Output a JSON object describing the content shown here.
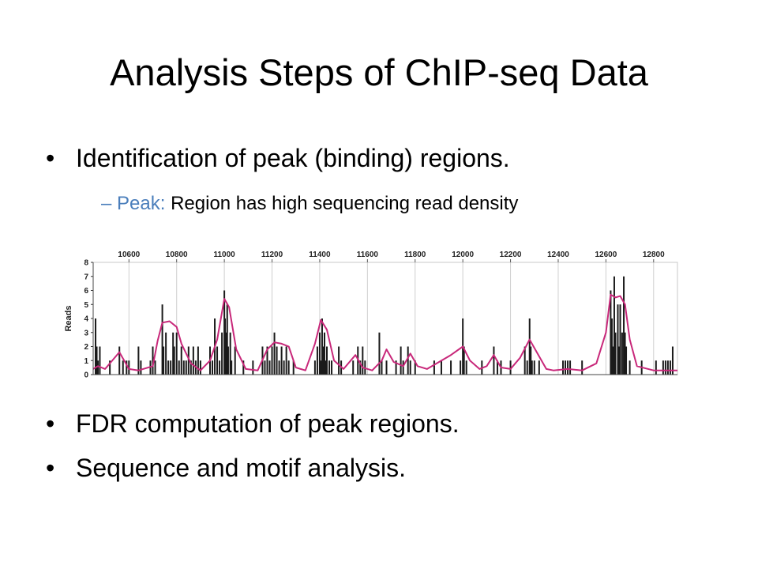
{
  "slide": {
    "title": "Analysis Steps of ChIP-seq Data",
    "bullet_1": "Identification of peak (binding) regions.",
    "sub_1_dash": "–",
    "sub_1_term": "Peak:",
    "sub_1_text": "Region has high sequencing read density",
    "bullet_2": "FDR computation of peak regions.",
    "bullet_3": "Sequence and motif analysis.",
    "bullet_symbol": "•",
    "accent_color": "#4a7ebb"
  },
  "chart_data": {
    "type": "bar",
    "ylabel": "Reads",
    "ylim": [
      0,
      8
    ],
    "yticks": [
      0,
      1,
      2,
      3,
      4,
      5,
      6,
      7,
      8
    ],
    "xlim": [
      10450,
      12900
    ],
    "xticks": [
      10600,
      10800,
      11000,
      11200,
      11400,
      11600,
      11800,
      12000,
      12200,
      12400,
      12600,
      12800
    ],
    "grid": true,
    "bar_color": "#1a1a1a",
    "curve_color": "#c8287a",
    "bars": [
      [
        10460,
        4
      ],
      [
        10465,
        2
      ],
      [
        10470,
        1
      ],
      [
        10478,
        2
      ],
      [
        10520,
        1
      ],
      [
        10560,
        2
      ],
      [
        10575,
        1
      ],
      [
        10590,
        1
      ],
      [
        10600,
        1
      ],
      [
        10640,
        2
      ],
      [
        10650,
        1
      ],
      [
        10690,
        1
      ],
      [
        10700,
        2
      ],
      [
        10710,
        1
      ],
      [
        10740,
        5
      ],
      [
        10745,
        2
      ],
      [
        10755,
        3
      ],
      [
        10765,
        1
      ],
      [
        10775,
        1
      ],
      [
        10785,
        3
      ],
      [
        10790,
        2
      ],
      [
        10800,
        3
      ],
      [
        10810,
        1
      ],
      [
        10820,
        2
      ],
      [
        10830,
        1
      ],
      [
        10840,
        1
      ],
      [
        10850,
        2
      ],
      [
        10860,
        1
      ],
      [
        10870,
        2
      ],
      [
        10880,
        1
      ],
      [
        10890,
        2
      ],
      [
        10900,
        1
      ],
      [
        10940,
        2
      ],
      [
        10950,
        1
      ],
      [
        10960,
        4
      ],
      [
        10970,
        2
      ],
      [
        10980,
        1
      ],
      [
        10990,
        3
      ],
      [
        11000,
        6
      ],
      [
        11003,
        4
      ],
      [
        11008,
        3
      ],
      [
        11012,
        5
      ],
      [
        11016,
        2
      ],
      [
        11025,
        3
      ],
      [
        11030,
        1
      ],
      [
        11045,
        2
      ],
      [
        11080,
        1
      ],
      [
        11120,
        1
      ],
      [
        11160,
        2
      ],
      [
        11170,
        1
      ],
      [
        11180,
        2
      ],
      [
        11190,
        1
      ],
      [
        11200,
        2
      ],
      [
        11210,
        3
      ],
      [
        11220,
        2
      ],
      [
        11230,
        1
      ],
      [
        11240,
        2
      ],
      [
        11250,
        1
      ],
      [
        11260,
        2
      ],
      [
        11270,
        1
      ],
      [
        11290,
        1
      ],
      [
        11380,
        1
      ],
      [
        11390,
        2
      ],
      [
        11400,
        3
      ],
      [
        11405,
        1
      ],
      [
        11410,
        4
      ],
      [
        11415,
        2
      ],
      [
        11420,
        3
      ],
      [
        11425,
        1
      ],
      [
        11430,
        2
      ],
      [
        11440,
        1
      ],
      [
        11450,
        1
      ],
      [
        11480,
        2
      ],
      [
        11490,
        1
      ],
      [
        11540,
        1
      ],
      [
        11560,
        2
      ],
      [
        11570,
        1
      ],
      [
        11580,
        2
      ],
      [
        11590,
        1
      ],
      [
        11650,
        3
      ],
      [
        11660,
        1
      ],
      [
        11680,
        1
      ],
      [
        11720,
        1
      ],
      [
        11740,
        2
      ],
      [
        11750,
        1
      ],
      [
        11770,
        2
      ],
      [
        11780,
        1
      ],
      [
        11800,
        1
      ],
      [
        11880,
        1
      ],
      [
        11910,
        1
      ],
      [
        11950,
        1
      ],
      [
        11990,
        1
      ],
      [
        12000,
        4
      ],
      [
        12005,
        2
      ],
      [
        12015,
        1
      ],
      [
        12080,
        1
      ],
      [
        12130,
        2
      ],
      [
        12145,
        1
      ],
      [
        12160,
        1
      ],
      [
        12200,
        1
      ],
      [
        12260,
        2
      ],
      [
        12270,
        1
      ],
      [
        12280,
        4
      ],
      [
        12285,
        2
      ],
      [
        12290,
        1
      ],
      [
        12300,
        1
      ],
      [
        12320,
        1
      ],
      [
        12420,
        1
      ],
      [
        12430,
        1
      ],
      [
        12440,
        1
      ],
      [
        12450,
        1
      ],
      [
        12500,
        1
      ],
      [
        12620,
        6
      ],
      [
        12625,
        4
      ],
      [
        12630,
        2
      ],
      [
        12635,
        7
      ],
      [
        12640,
        3
      ],
      [
        12650,
        5
      ],
      [
        12655,
        2
      ],
      [
        12660,
        5
      ],
      [
        12668,
        3
      ],
      [
        12675,
        7
      ],
      [
        12680,
        3
      ],
      [
        12685,
        2
      ],
      [
        12700,
        1
      ],
      [
        12750,
        1
      ],
      [
        12810,
        1
      ],
      [
        12840,
        1
      ],
      [
        12850,
        1
      ],
      [
        12860,
        1
      ],
      [
        12870,
        1
      ],
      [
        12880,
        2
      ]
    ],
    "curve": [
      [
        10450,
        0.4
      ],
      [
        10470,
        0.6
      ],
      [
        10500,
        0.4
      ],
      [
        10560,
        1.6
      ],
      [
        10600,
        0.4
      ],
      [
        10640,
        0.3
      ],
      [
        10700,
        0.6
      ],
      [
        10720,
        2.4
      ],
      [
        10740,
        3.7
      ],
      [
        10770,
        3.8
      ],
      [
        10800,
        3.4
      ],
      [
        10820,
        2.2
      ],
      [
        10860,
        0.8
      ],
      [
        10900,
        0.3
      ],
      [
        10940,
        1
      ],
      [
        10970,
        2.5
      ],
      [
        11000,
        5.4
      ],
      [
        11020,
        4.8
      ],
      [
        11050,
        1.8
      ],
      [
        11090,
        0.4
      ],
      [
        11140,
        0.3
      ],
      [
        11180,
        1.8
      ],
      [
        11210,
        2.3
      ],
      [
        11240,
        2.2
      ],
      [
        11270,
        2
      ],
      [
        11300,
        0.5
      ],
      [
        11340,
        0.3
      ],
      [
        11380,
        2.2
      ],
      [
        11405,
        3.9
      ],
      [
        11430,
        3.2
      ],
      [
        11460,
        1
      ],
      [
        11500,
        0.4
      ],
      [
        11550,
        1.4
      ],
      [
        11580,
        0.5
      ],
      [
        11620,
        0.3
      ],
      [
        11660,
        1
      ],
      [
        11680,
        1.8
      ],
      [
        11710,
        0.9
      ],
      [
        11750,
        0.6
      ],
      [
        11780,
        1.5
      ],
      [
        11810,
        0.6
      ],
      [
        11850,
        0.4
      ],
      [
        11880,
        0.7
      ],
      [
        11950,
        1.4
      ],
      [
        12000,
        2
      ],
      [
        12030,
        1
      ],
      [
        12070,
        0.4
      ],
      [
        12100,
        0.6
      ],
      [
        12130,
        1.4
      ],
      [
        12160,
        0.5
      ],
      [
        12200,
        0.4
      ],
      [
        12240,
        1.2
      ],
      [
        12280,
        2.5
      ],
      [
        12310,
        1.6
      ],
      [
        12350,
        0.4
      ],
      [
        12380,
        0.3
      ],
      [
        12440,
        0.4
      ],
      [
        12500,
        0.3
      ],
      [
        12560,
        0.8
      ],
      [
        12600,
        3
      ],
      [
        12620,
        5.7
      ],
      [
        12640,
        5.5
      ],
      [
        12660,
        5.6
      ],
      [
        12680,
        5
      ],
      [
        12700,
        2.5
      ],
      [
        12730,
        0.6
      ],
      [
        12800,
        0.3
      ],
      [
        12850,
        0.3
      ],
      [
        12900,
        0.3
      ]
    ]
  }
}
